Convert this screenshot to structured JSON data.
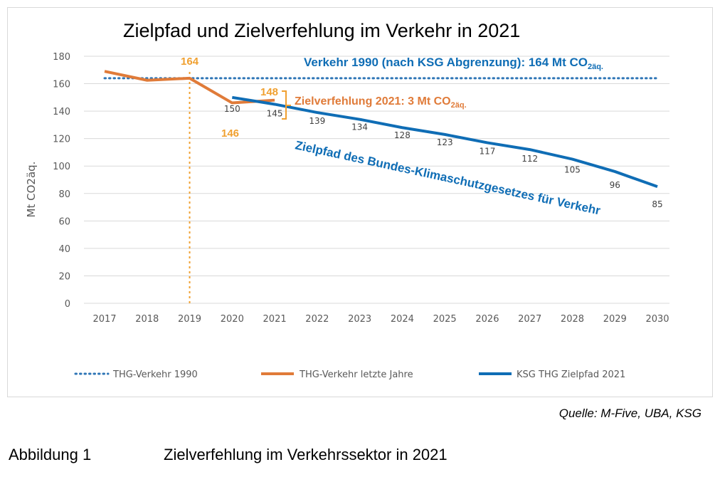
{
  "chart_data": {
    "type": "line",
    "title": "Zielpfad und Zielverfehlung im Verkehr in 2021",
    "ylabel": "Mt CO2äq.",
    "xlabel": "",
    "ylim": [
      0,
      180
    ],
    "yticks": [
      0,
      20,
      40,
      60,
      80,
      100,
      120,
      140,
      160,
      180
    ],
    "categories": [
      "2017",
      "2018",
      "2019",
      "2020",
      "2021",
      "2022",
      "2023",
      "2024",
      "2025",
      "2026",
      "2027",
      "2028",
      "2029",
      "2030"
    ],
    "grid": "horizontal",
    "legend_position": "bottom",
    "series": [
      {
        "name": "THG-Verkehr 1990",
        "style": "dotted",
        "color": "#2e75b6",
        "x": [
          "2017",
          "2030"
        ],
        "values": [
          164,
          164
        ]
      },
      {
        "name": "THG-Verkehr letzte Jahre",
        "style": "solid",
        "color": "#e07b39",
        "x": [
          "2017",
          "2018",
          "2019",
          "2020",
          "2021"
        ],
        "values": [
          169,
          162.5,
          164,
          146,
          148
        ]
      },
      {
        "name": "KSG THG Zielpfad 2021",
        "style": "solid",
        "color": "#0f6db5",
        "x": [
          "2020",
          "2021",
          "2022",
          "2023",
          "2024",
          "2025",
          "2026",
          "2027",
          "2028",
          "2029",
          "2030"
        ],
        "values": [
          150,
          145,
          139,
          134,
          128,
          123,
          117,
          112,
          105,
          96,
          85
        ]
      }
    ],
    "data_labels": {
      "zielpfad": [
        "150",
        "145",
        "139",
        "134",
        "128",
        "123",
        "117",
        "112",
        "105",
        "96",
        "85"
      ],
      "ist_2020": "146",
      "ist_2021": "148",
      "marker_2019": "164"
    },
    "annotations": {
      "verkehr_1990_main": "Verkehr 1990 (nach KSG Abgrenzung): 164 Mt CO",
      "verkehr_1990_sub": "2äq.",
      "zielverfehlung_main": "Zielverfehlung  2021: 3 Mt CO",
      "zielverfehlung_sub": "2äq.",
      "zielpfad_label": "Zielpfad des Bundes-Klimaschutzgesetzes  für Verkehr"
    },
    "colors": {
      "orange": "#e07b39",
      "orange_text": "#f0a030",
      "blue": "#0f6db5",
      "dotted_blue": "#2e75b6",
      "grid": "#d9d9d9",
      "axis_text": "#595959"
    }
  },
  "source": "Quelle: M-Five, UBA, KSG",
  "caption": {
    "number": "Abbildung 1",
    "text": "Zielverfehlung im Verkehrssektor in 2021"
  }
}
